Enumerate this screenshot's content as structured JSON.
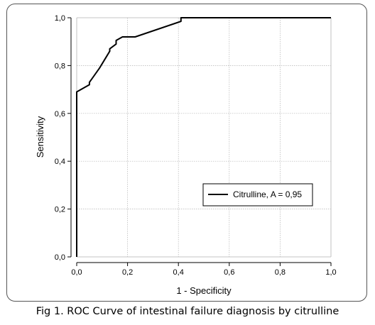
{
  "caption": "Fig 1. ROC Curve of intestinal failure diagnosis by citrulline",
  "chart_data": {
    "type": "line",
    "title": "",
    "xlabel": "1 - Specificity",
    "ylabel": "Sensitivity",
    "xlim": [
      0,
      1
    ],
    "ylim": [
      0,
      1
    ],
    "grid": true,
    "legend_position": "right",
    "x_ticks": [
      "0,0",
      "0,2",
      "0,4",
      "0,6",
      "0,8",
      "1,0"
    ],
    "y_ticks": [
      "0,0",
      "0,2",
      "0,4",
      "0,6",
      "0,8",
      "1,0"
    ],
    "series": [
      {
        "name": "Citrulline, A = 0,95",
        "color": "#000000",
        "x": [
          0.0,
          0.0,
          0.0,
          0.05,
          0.05,
          0.09,
          0.13,
          0.13,
          0.155,
          0.155,
          0.18,
          0.23,
          0.41,
          0.41,
          1.0
        ],
        "y": [
          0.0,
          0.55,
          0.69,
          0.72,
          0.73,
          0.79,
          0.86,
          0.87,
          0.89,
          0.905,
          0.92,
          0.92,
          0.985,
          1.0,
          1.0
        ]
      }
    ]
  }
}
